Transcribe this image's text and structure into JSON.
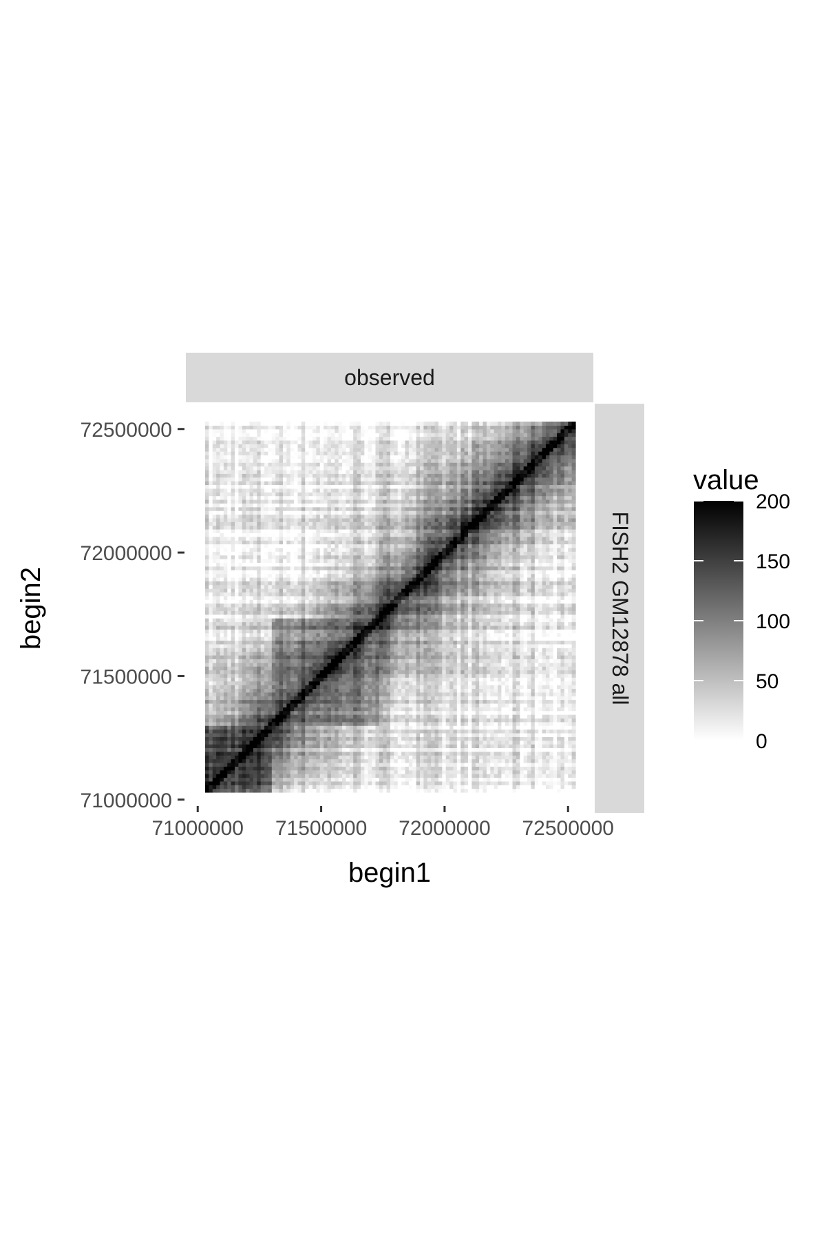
{
  "chart_data": {
    "type": "heatmap",
    "facet_top": "observed",
    "facet_right": "FISH2 GM12878 all",
    "xlabel": "begin1",
    "ylabel": "begin2",
    "x_ticks": [
      71000000,
      71500000,
      72000000,
      72500000
    ],
    "y_ticks": [
      71000000,
      71500000,
      72000000,
      72500000
    ],
    "x_tick_labels": [
      "71000000",
      "71500000",
      "72000000",
      "72500000"
    ],
    "y_tick_labels": [
      "71000000",
      "71500000",
      "72000000",
      "72500000"
    ],
    "xlim": [
      71030000,
      72530000
    ],
    "ylim": [
      71030000,
      72530000
    ],
    "bin_size": 10000,
    "scale": {
      "low": "#ffffff",
      "high": "#000000",
      "range": [
        0,
        200
      ]
    },
    "legend": {
      "title": "value",
      "breaks": [
        0,
        50,
        100,
        150,
        200
      ],
      "labels": [
        "0",
        "50",
        "100",
        "150",
        "200"
      ],
      "position": "right"
    },
    "grid": false,
    "domains": [
      {
        "start": 71030000,
        "end": 71300000,
        "value": 150
      },
      {
        "start": 71300000,
        "end": 71730000,
        "value": 120
      },
      {
        "start": 71730000,
        "end": 72530000,
        "value": 25
      },
      {
        "start": 71900000,
        "end": 72530000,
        "value": 45
      }
    ],
    "diagonal_value": 200,
    "background_value": 10
  }
}
